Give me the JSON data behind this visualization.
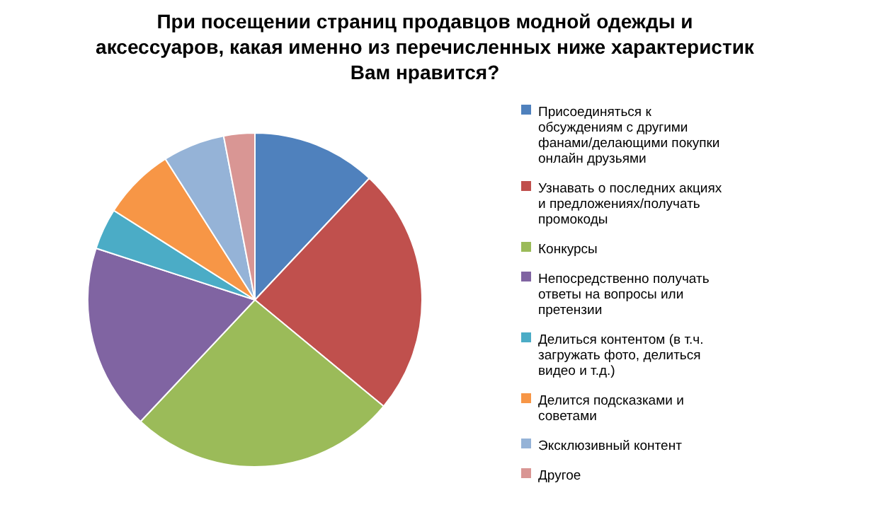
{
  "chart_data": {
    "type": "pie",
    "title": "При посещении страниц продавцов модной одежды и аксессуаров, какая именно из перечисленных ниже характеристик Вам нравится?",
    "categories": [
      "Присоединяться к обсуждениям с другими фанами/делающими покупки онлайн друзьями",
      "Узнавать о последних акциях и предложениях/получать промокоды",
      "Конкурсы",
      "Непосредственно получать ответы на вопросы или претензии",
      "Делиться контентом (в т.ч. загружать фото, делиться видео и т.д.)",
      "Делится подсказками и советами",
      "Эксклюзивный контент",
      "Другое"
    ],
    "values": [
      12,
      24,
      26,
      18,
      4,
      7,
      6,
      3
    ],
    "colors": [
      "#4f81bd",
      "#c0504d",
      "#9bbb59",
      "#8064a2",
      "#4bacc6",
      "#f79646",
      "#95b3d7",
      "#d99694"
    ],
    "legend": "right"
  }
}
